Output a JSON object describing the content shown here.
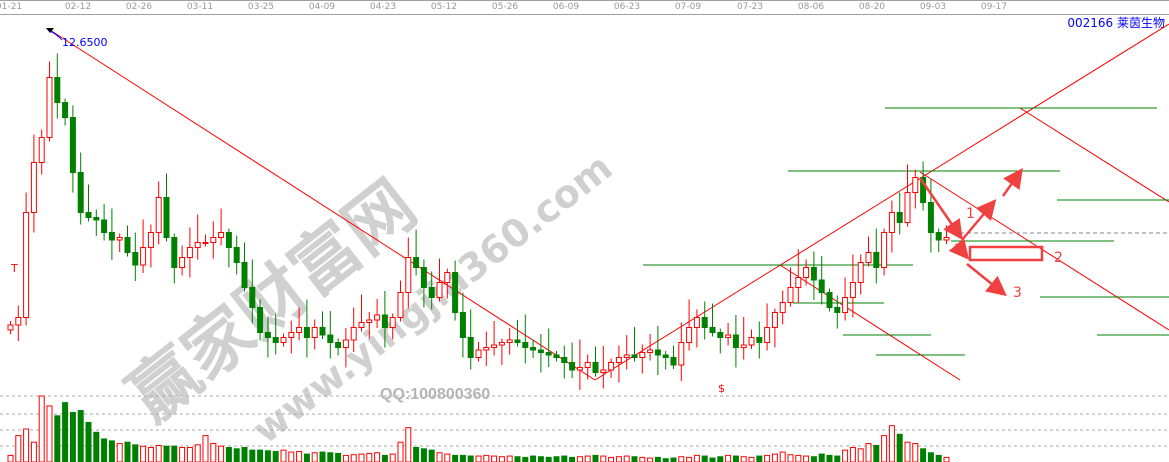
{
  "chart_data": {
    "type": "candlestick",
    "symbol_code": "002166",
    "symbol_name": "莱茵生物",
    "x_tick_labels": [
      "01-21",
      "02-12",
      "02-26",
      "03-11",
      "03-25",
      "04-09",
      "04-23",
      "05-12",
      "05-26",
      "06-09",
      "06-23",
      "07-09",
      "07-23",
      "08-06",
      "08-20",
      "09-03",
      "09-17"
    ],
    "peak_label": "12.6500",
    "peak_value": 12.65,
    "close": [
      6.75,
      6.9,
      9.0,
      10.0,
      10.5,
      11.7,
      11.2,
      10.9,
      9.8,
      9.0,
      8.9,
      8.85,
      8.6,
      8.45,
      8.5,
      8.2,
      7.95,
      8.3,
      8.6,
      9.3,
      8.5,
      7.9,
      8.1,
      8.3,
      8.4,
      8.4,
      8.5,
      8.6,
      8.3,
      8.0,
      7.5,
      7.1,
      6.6,
      6.5,
      6.4,
      6.5,
      6.6,
      6.7,
      6.5,
      6.7,
      6.55,
      6.4,
      6.3,
      6.45,
      6.7,
      6.8,
      6.85,
      6.95,
      6.7,
      6.9,
      7.4,
      8.1,
      7.9,
      7.5,
      7.3,
      7.6,
      7.8,
      7.0,
      6.5,
      6.1,
      6.25,
      6.3,
      6.35,
      6.4,
      6.45,
      6.4,
      6.3,
      6.25,
      6.2,
      6.15,
      6.1,
      6.0,
      5.85,
      5.9,
      6.0,
      5.8,
      5.85,
      6.0,
      6.1,
      6.15,
      6.1,
      6.2,
      6.25,
      6.15,
      6.1,
      5.95,
      6.4,
      6.7,
      6.9,
      6.7,
      6.6,
      6.5,
      6.55,
      6.3,
      6.35,
      6.5,
      6.4,
      6.7,
      7.0,
      7.2,
      7.5,
      7.7,
      7.9,
      7.65,
      7.4,
      7.1,
      7.0,
      7.3,
      7.6,
      8.0,
      8.2,
      7.9,
      8.6,
      9.0,
      8.8,
      9.4,
      9.7,
      9.2,
      8.6,
      8.45,
      8.5
    ],
    "volume": [
      10,
      40,
      50,
      30,
      100,
      85,
      70,
      90,
      75,
      78,
      60,
      45,
      35,
      32,
      28,
      30,
      26,
      24,
      22,
      25,
      24,
      24,
      22,
      22,
      26,
      40,
      28,
      24,
      22,
      20,
      22,
      18,
      18,
      17,
      16,
      18,
      15,
      16,
      12,
      14,
      15,
      14,
      13,
      10,
      11,
      12,
      13,
      14,
      10,
      12,
      30,
      52,
      22,
      20,
      18,
      14,
      12,
      10,
      10,
      9,
      9,
      10,
      9,
      8,
      9,
      8,
      7,
      9,
      8,
      7,
      8,
      9,
      7,
      8,
      9,
      10,
      9,
      7,
      8,
      9,
      8,
      7,
      6,
      7,
      5,
      6,
      8,
      7,
      10,
      9,
      6,
      8,
      10,
      9,
      8,
      7,
      9,
      10,
      12,
      15,
      11,
      10,
      9,
      8,
      12,
      10,
      9,
      18,
      22,
      20,
      28,
      25,
      40,
      55,
      42,
      30,
      28,
      20,
      14,
      10,
      7
    ]
  },
  "annotations": {
    "arrow_1": "1",
    "arrow_2": "2",
    "arrow_3": "3",
    "marker_t": "T",
    "marker_dollar": "$"
  },
  "watermark": {
    "site_name": "赢家财富网",
    "url": "www.yingjia360.com",
    "qq": "QQ:100800360"
  },
  "colors": {
    "up": "#ff0000",
    "down": "#008000",
    "trend": "#ff0000",
    "support": "#008000",
    "label": "#0000ff",
    "arrow": "#f04040"
  }
}
